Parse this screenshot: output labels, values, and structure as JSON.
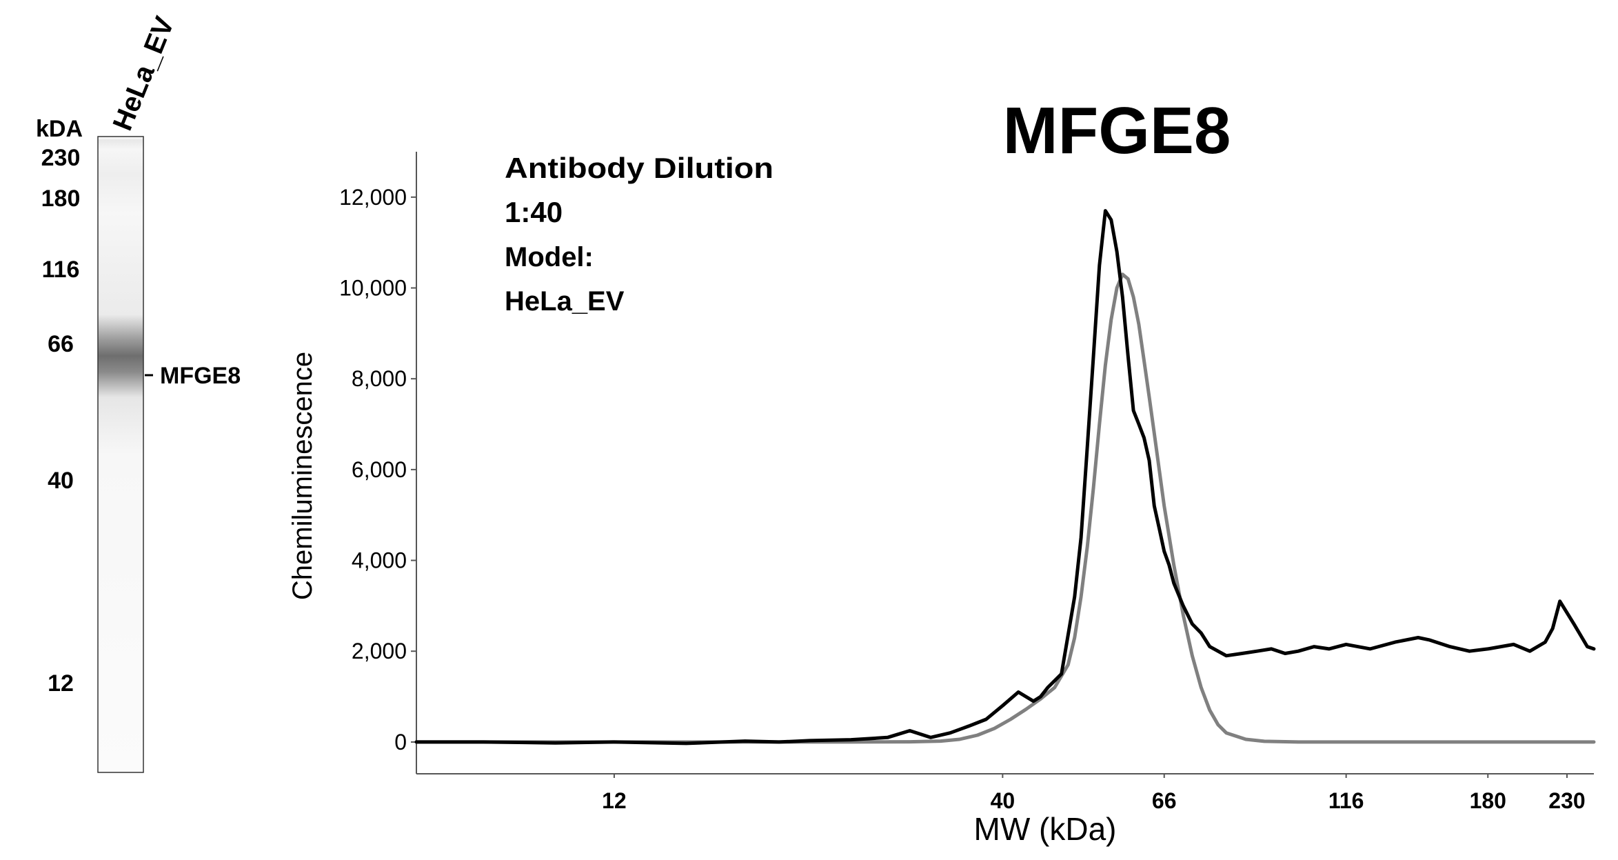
{
  "blot": {
    "lane_label": "HeLa_EV",
    "unit_label": "kDA",
    "band_label": "MFGE8",
    "ladder": [
      "230",
      "180",
      "116",
      "66",
      "40",
      "12"
    ]
  },
  "chart_data": {
    "type": "line",
    "title": "MFGE8",
    "xlabel": "MW (kDa)",
    "ylabel": "Chemiluminescence",
    "x_scale": "log",
    "xlim": [
      6.5,
      250
    ],
    "ylim": [
      -700,
      13000
    ],
    "x_ticks": [
      12,
      40,
      66,
      116,
      180,
      230
    ],
    "y_ticks": [
      0,
      2000,
      4000,
      6000,
      8000,
      10000,
      12000
    ],
    "y_tick_labels": [
      "0",
      "2,000",
      "4,000",
      "6,000",
      "8,000",
      "10,000",
      "12,000"
    ],
    "annotations": [
      "Antibody Dilution",
      "1:40",
      "Model:",
      "HeLa_EV"
    ],
    "series": [
      {
        "color": "#000000",
        "x": [
          6.5,
          8,
          10,
          12,
          15,
          18,
          20,
          22,
          25,
          28,
          30,
          32,
          34,
          36,
          38,
          40,
          42,
          44,
          45,
          46,
          48,
          50,
          51,
          52,
          53,
          54,
          55,
          56,
          57,
          58,
          59,
          60,
          61,
          62,
          63,
          64,
          65,
          66,
          67,
          68,
          70,
          72,
          74,
          76,
          80,
          84,
          88,
          92,
          96,
          100,
          105,
          110,
          116,
          125,
          135,
          145,
          150,
          160,
          170,
          180,
          195,
          205,
          215,
          220,
          225,
          235,
          245,
          250
        ],
        "y": [
          0,
          0,
          -20,
          0,
          -30,
          20,
          0,
          30,
          50,
          100,
          250,
          100,
          200,
          350,
          500,
          800,
          1100,
          900,
          1000,
          1200,
          1500,
          3200,
          4500,
          6500,
          8500,
          10500,
          11700,
          11500,
          10800,
          9800,
          8500,
          7300,
          7000,
          6700,
          6200,
          5200,
          4700,
          4200,
          3900,
          3500,
          3000,
          2600,
          2400,
          2100,
          1900,
          1950,
          2000,
          2050,
          1950,
          2000,
          2100,
          2050,
          2150,
          2050,
          2200,
          2300,
          2250,
          2100,
          2000,
          2050,
          2150,
          2000,
          2200,
          2500,
          3100,
          2600,
          2100,
          2050
        ]
      },
      {
        "color": "#808080",
        "x": [
          6.5,
          10,
          15,
          20,
          25,
          30,
          33,
          35,
          37,
          39,
          41,
          43,
          45,
          47,
          49,
          50,
          51,
          52,
          53,
          54,
          55,
          56,
          57,
          58,
          59,
          60,
          61,
          62,
          63,
          64,
          66,
          68,
          70,
          72,
          74,
          76,
          78,
          80,
          85,
          90,
          100,
          120,
          150,
          200,
          250
        ],
        "y": [
          0,
          0,
          0,
          0,
          0,
          5,
          20,
          60,
          150,
          300,
          500,
          720,
          950,
          1200,
          1700,
          2300,
          3200,
          4300,
          5600,
          7000,
          8300,
          9300,
          10000,
          10300,
          10200,
          9800,
          9200,
          8400,
          7600,
          6800,
          5200,
          3900,
          2800,
          1900,
          1200,
          700,
          380,
          200,
          60,
          15,
          0,
          0,
          0,
          0,
          0
        ]
      }
    ]
  }
}
